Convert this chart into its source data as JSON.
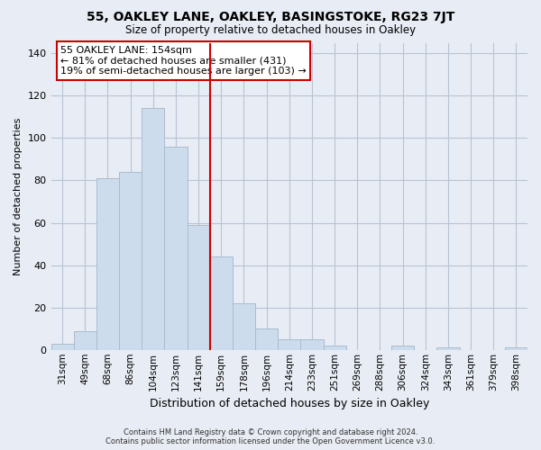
{
  "title": "55, OAKLEY LANE, OAKLEY, BASINGSTOKE, RG23 7JT",
  "subtitle": "Size of property relative to detached houses in Oakley",
  "xlabel": "Distribution of detached houses by size in Oakley",
  "ylabel": "Number of detached properties",
  "bar_labels": [
    "31sqm",
    "49sqm",
    "68sqm",
    "86sqm",
    "104sqm",
    "123sqm",
    "141sqm",
    "159sqm",
    "178sqm",
    "196sqm",
    "214sqm",
    "233sqm",
    "251sqm",
    "269sqm",
    "288sqm",
    "306sqm",
    "324sqm",
    "343sqm",
    "361sqm",
    "379sqm",
    "398sqm"
  ],
  "bar_values": [
    3,
    9,
    81,
    84,
    114,
    96,
    59,
    44,
    22,
    10,
    5,
    5,
    2,
    0,
    0,
    2,
    0,
    1,
    0,
    0,
    1
  ],
  "bar_color": "#cddcec",
  "bar_edge_color": "#aabccc",
  "vline_x": 6.5,
  "vline_color": "#cc0000",
  "annotation_title": "55 OAKLEY LANE: 154sqm",
  "annotation_line1": "← 81% of detached houses are smaller (431)",
  "annotation_line2": "19% of semi-detached houses are larger (103) →",
  "annotation_box_color": "#ffffff",
  "annotation_box_edge_color": "#cc0000",
  "ylim": [
    0,
    145
  ],
  "yticks": [
    0,
    20,
    40,
    60,
    80,
    100,
    120,
    140
  ],
  "footer_line1": "Contains HM Land Registry data © Crown copyright and database right 2024.",
  "footer_line2": "Contains public sector information licensed under the Open Government Licence v3.0.",
  "bg_color": "#e8ecf4",
  "plot_bg_color": "#e8ecf4",
  "grid_color": "#b8c4d4"
}
